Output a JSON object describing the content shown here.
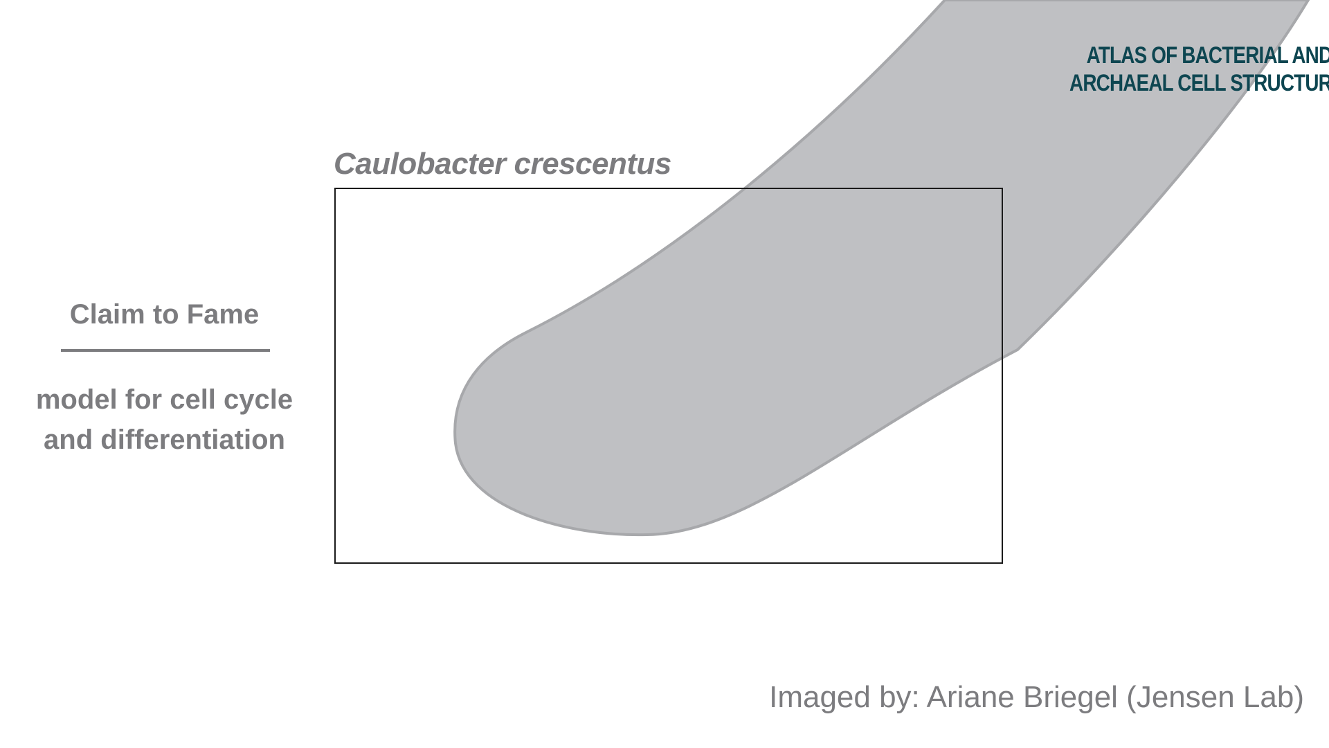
{
  "logo": {
    "line1": "Atlas of Bacterial and",
    "line2": "Archaeal Cell Structure",
    "color": "#0e4651"
  },
  "species_name": "Caulobacter crescentus",
  "claim": {
    "heading": "Claim to Fame",
    "text_line1": "model for cell cycle",
    "text_line2": "and differentiation"
  },
  "credit": "Imaged by: Ariane Briegel (Jensen Lab)",
  "colors": {
    "text_gray": "#7c7c7f",
    "cell_fill": "#bfc0c3",
    "cell_outline": "#a7a8ab",
    "frame": "#1a1a1a"
  }
}
